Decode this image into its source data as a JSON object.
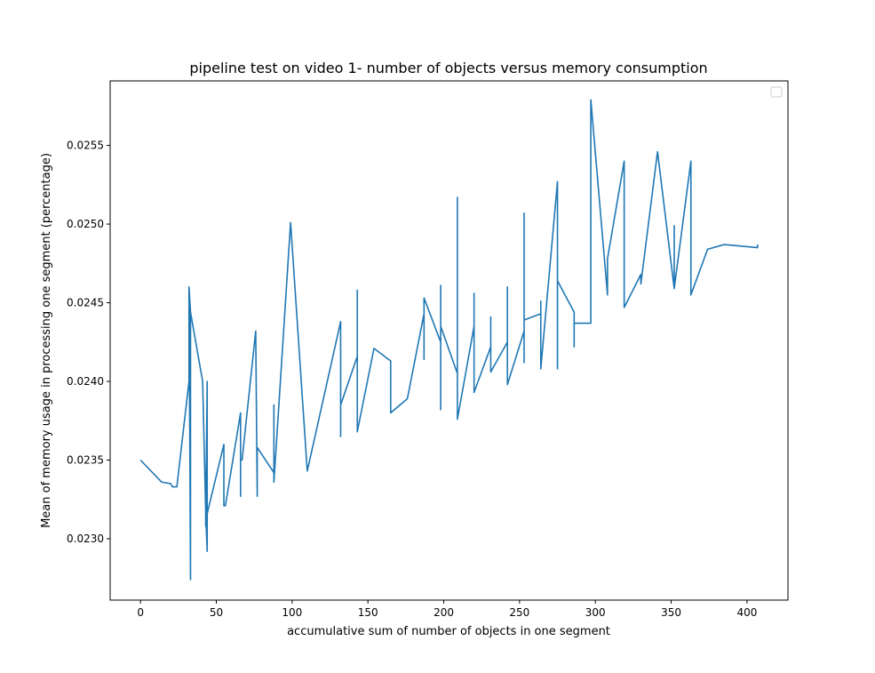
{
  "chart_data": {
    "type": "line",
    "title": "pipeline test on video 1- number of objects versus memory consumption",
    "xlabel": "accumulative sum of number of objects in one segment",
    "ylabel": "Mean of memory usage in processing one segment (percentage)",
    "xlim": [
      -20,
      427
    ],
    "ylim": [
      0.02261,
      0.02591
    ],
    "xticks": [
      0,
      50,
      100,
      150,
      200,
      250,
      300,
      350,
      400
    ],
    "xtick_labels": [
      "0",
      "50",
      "100",
      "150",
      "200",
      "250",
      "300",
      "350",
      "400"
    ],
    "yticks": [
      0.023,
      0.0235,
      0.024,
      0.0245,
      0.025,
      0.0255
    ],
    "ytick_labels": [
      "0.0230",
      "0.0235",
      "0.0240",
      "0.0245",
      "0.0250",
      "0.0255"
    ],
    "grid": false,
    "legend": "top-right (empty)",
    "colors": {
      "line": "#1f77b4",
      "axes": "#000000",
      "background": "#ffffff"
    },
    "series": [
      {
        "x": [
          0,
          14,
          20,
          21,
          22,
          24,
          32,
          32,
          33,
          33,
          32,
          33,
          41,
          43,
          43,
          44,
          44,
          43,
          44,
          55,
          55,
          56,
          56,
          66,
          66,
          66,
          66,
          67,
          76,
          77,
          77,
          77,
          77,
          77,
          88,
          88,
          88,
          99,
          110,
          132,
          132,
          132,
          143,
          143,
          143,
          143,
          154,
          165,
          165,
          176,
          187,
          187,
          187,
          198,
          198,
          198,
          198,
          198,
          198,
          209,
          209,
          209,
          209,
          220,
          220,
          220,
          231,
          231,
          231,
          242,
          242,
          242,
          242,
          253,
          253,
          253,
          253,
          264,
          264,
          264,
          275,
          275,
          275,
          275,
          286,
          286,
          286,
          286,
          297,
          297,
          308,
          308,
          319,
          319,
          330,
          330,
          330,
          341,
          352,
          352,
          352,
          363,
          363,
          374,
          385,
          407,
          407
        ],
        "y": [
          0.0235,
          0.02336,
          0.02335,
          0.02333,
          0.02333,
          0.02333,
          0.024,
          0.0246,
          0.02274,
          0.02444,
          0.0246,
          0.02444,
          0.024,
          0.02318,
          0.02308,
          0.024,
          0.02292,
          0.02316,
          0.02316,
          0.0236,
          0.02321,
          0.02321,
          0.02321,
          0.0238,
          0.02327,
          0.0235,
          0.0235,
          0.0235,
          0.02432,
          0.02327,
          0.02358,
          0.02358,
          0.02358,
          0.02358,
          0.02342,
          0.02385,
          0.02336,
          0.02501,
          0.02343,
          0.02438,
          0.02365,
          0.02385,
          0.02416,
          0.02458,
          0.02368,
          0.02368,
          0.02421,
          0.02413,
          0.0238,
          0.02389,
          0.02443,
          0.02414,
          0.02453,
          0.02425,
          0.02461,
          0.02382,
          0.02382,
          0.02435,
          0.02435,
          0.02405,
          0.02517,
          0.02376,
          0.02376,
          0.02435,
          0.02456,
          0.02393,
          0.02422,
          0.02441,
          0.02406,
          0.02425,
          0.0246,
          0.02398,
          0.02398,
          0.02432,
          0.02507,
          0.02412,
          0.02439,
          0.02443,
          0.02451,
          0.02408,
          0.02527,
          0.02408,
          0.02464,
          0.02464,
          0.02444,
          0.02422,
          0.02437,
          0.02437,
          0.02437,
          0.02579,
          0.02455,
          0.02478,
          0.0254,
          0.02447,
          0.02468,
          0.02462,
          0.02462,
          0.02546,
          0.02459,
          0.02499,
          0.02459,
          0.0254,
          0.02455,
          0.02484,
          0.02487,
          0.02485,
          0.02487
        ]
      }
    ]
  }
}
